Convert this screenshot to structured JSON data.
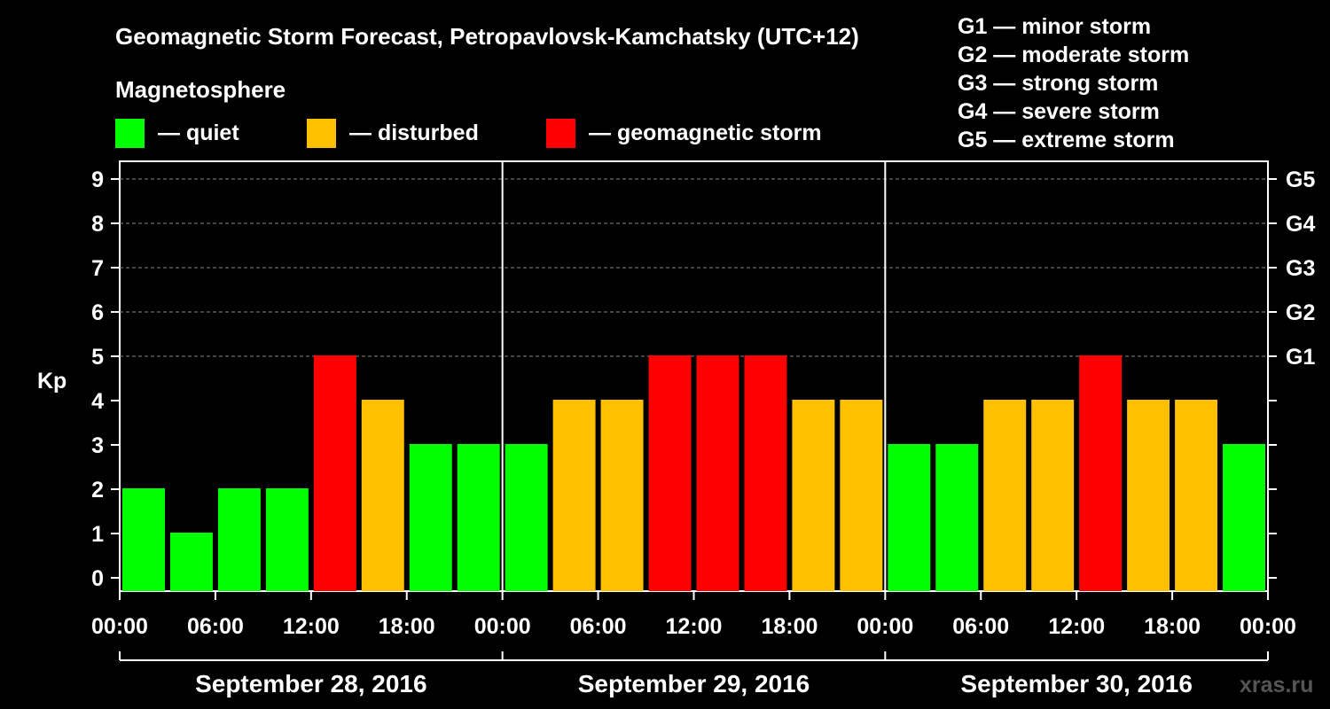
{
  "chart_data": {
    "type": "bar",
    "title": "Geomagnetic Storm Forecast, Petropavlovsk-Kamchatsky (UTC+12)",
    "ylabel": "Kp",
    "ylim": [
      0,
      9
    ],
    "yticks": [
      "0",
      "1",
      "2",
      "3",
      "4",
      "5",
      "6",
      "7",
      "8",
      "9"
    ],
    "right_ticks": [
      "G1",
      "G2",
      "G3",
      "G4",
      "G5"
    ],
    "right_tick_values": [
      5,
      6,
      7,
      8,
      9
    ],
    "legend_title": "Magnetosphere",
    "legend": [
      {
        "label": "— quiet",
        "color": "#00ff00"
      },
      {
        "label": "— disturbed",
        "color": "#ffc000"
      },
      {
        "label": "— geomagnetic storm",
        "color": "#ff0000"
      }
    ],
    "storm_scale": [
      "G1 — minor storm",
      "G2 — moderate storm",
      "G3 — strong storm",
      "G4 — severe storm",
      "G5 — extreme storm"
    ],
    "x_tick_labels": [
      "00:00",
      "06:00",
      "12:00",
      "18:00",
      "00:00",
      "06:00",
      "12:00",
      "18:00",
      "00:00",
      "06:00",
      "12:00",
      "18:00",
      "00:00"
    ],
    "days": [
      "September 28, 2016",
      "September 29, 2016",
      "September 30, 2016"
    ],
    "values": [
      2,
      1,
      2,
      2,
      5,
      4,
      3,
      3,
      3,
      4,
      4,
      5,
      5,
      5,
      4,
      4,
      3,
      3,
      4,
      4,
      5,
      4,
      4,
      3
    ],
    "colors": {
      "quiet": "#00ff00",
      "disturbed": "#ffc000",
      "storm": "#ff0000",
      "grid": "#888888",
      "axis": "#ffffff"
    }
  },
  "footer": "xras.ru"
}
